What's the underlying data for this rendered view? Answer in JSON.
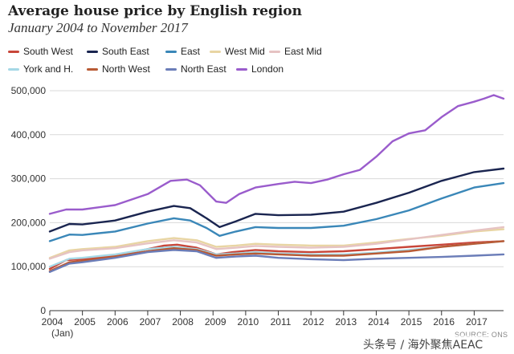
{
  "chart_data": {
    "type": "line",
    "title": "Average house price by English region",
    "subtitle": "January 2004 to November 2017",
    "source": "SOURCE: ONS",
    "x_tick_labels": [
      "2004",
      "2005",
      "2006",
      "2007",
      "2008",
      "2009",
      "2010",
      "2011",
      "2012",
      "2013",
      "2014",
      "2015",
      "2016",
      "2017"
    ],
    "x_first_tick_note": "(Jan)",
    "xlim": [
      2004.0,
      2017.9
    ],
    "y_tick_labels": [
      "0",
      "100,000",
      "200,000",
      "300,000",
      "400,000",
      "500,000"
    ],
    "ylim": [
      0,
      500000
    ],
    "grid": "horizontal",
    "legend_position": "top-left",
    "series": [
      {
        "name": "South West",
        "color": "#c8463a",
        "points": [
          [
            2004.0,
            95000
          ],
          [
            2004.5,
            115000
          ],
          [
            2005.0,
            117000
          ],
          [
            2006.0,
            125000
          ],
          [
            2007.0,
            140000
          ],
          [
            2007.5,
            148000
          ],
          [
            2007.9,
            150000
          ],
          [
            2008.5,
            143000
          ],
          [
            2009.1,
            128000
          ],
          [
            2009.6,
            133000
          ],
          [
            2010.3,
            138000
          ],
          [
            2011.0,
            135000
          ],
          [
            2012.0,
            133000
          ],
          [
            2013.0,
            135000
          ],
          [
            2014.0,
            140000
          ],
          [
            2015.0,
            145000
          ],
          [
            2016.0,
            150000
          ],
          [
            2017.0,
            155000
          ],
          [
            2017.9,
            158000
          ]
        ]
      },
      {
        "name": "South East",
        "color": "#1a2550",
        "points": [
          [
            2004.0,
            180000
          ],
          [
            2004.6,
            197000
          ],
          [
            2005.0,
            196000
          ],
          [
            2006.0,
            205000
          ],
          [
            2007.0,
            225000
          ],
          [
            2007.8,
            238000
          ],
          [
            2008.3,
            233000
          ],
          [
            2008.8,
            210000
          ],
          [
            2009.2,
            190000
          ],
          [
            2009.7,
            203000
          ],
          [
            2010.3,
            220000
          ],
          [
            2011.0,
            217000
          ],
          [
            2012.0,
            218000
          ],
          [
            2013.0,
            225000
          ],
          [
            2014.0,
            245000
          ],
          [
            2015.0,
            268000
          ],
          [
            2016.0,
            295000
          ],
          [
            2016.5,
            305000
          ],
          [
            2017.0,
            315000
          ],
          [
            2017.9,
            323000
          ]
        ]
      },
      {
        "name": "East",
        "color": "#3a87b8",
        "points": [
          [
            2004.0,
            158000
          ],
          [
            2004.6,
            173000
          ],
          [
            2005.0,
            172000
          ],
          [
            2006.0,
            180000
          ],
          [
            2007.0,
            198000
          ],
          [
            2007.8,
            210000
          ],
          [
            2008.3,
            205000
          ],
          [
            2008.8,
            188000
          ],
          [
            2009.2,
            170000
          ],
          [
            2009.7,
            180000
          ],
          [
            2010.3,
            190000
          ],
          [
            2011.0,
            188000
          ],
          [
            2012.0,
            188000
          ],
          [
            2013.0,
            193000
          ],
          [
            2014.0,
            208000
          ],
          [
            2015.0,
            228000
          ],
          [
            2016.0,
            255000
          ],
          [
            2017.0,
            280000
          ],
          [
            2017.9,
            290000
          ]
        ]
      },
      {
        "name": "West Mid",
        "color": "#e8d5a3",
        "points": [
          [
            2004.0,
            120000
          ],
          [
            2004.6,
            137000
          ],
          [
            2005.0,
            140000
          ],
          [
            2006.0,
            145000
          ],
          [
            2007.0,
            158000
          ],
          [
            2007.8,
            165000
          ],
          [
            2008.5,
            160000
          ],
          [
            2009.1,
            145000
          ],
          [
            2009.7,
            148000
          ],
          [
            2010.3,
            152000
          ],
          [
            2011.0,
            150000
          ],
          [
            2012.0,
            148000
          ],
          [
            2013.0,
            148000
          ],
          [
            2014.0,
            155000
          ],
          [
            2015.0,
            163000
          ],
          [
            2016.0,
            170000
          ],
          [
            2017.0,
            180000
          ],
          [
            2017.9,
            185000
          ]
        ]
      },
      {
        "name": "East Mid",
        "color": "#e6c3c3",
        "points": [
          [
            2004.0,
            118000
          ],
          [
            2004.6,
            133000
          ],
          [
            2005.0,
            137000
          ],
          [
            2006.0,
            142000
          ],
          [
            2007.0,
            153000
          ],
          [
            2007.8,
            160000
          ],
          [
            2008.5,
            155000
          ],
          [
            2009.1,
            140000
          ],
          [
            2009.7,
            143000
          ],
          [
            2010.3,
            147000
          ],
          [
            2011.0,
            145000
          ],
          [
            2012.0,
            143000
          ],
          [
            2013.0,
            145000
          ],
          [
            2014.0,
            152000
          ],
          [
            2015.0,
            162000
          ],
          [
            2016.0,
            172000
          ],
          [
            2017.0,
            182000
          ],
          [
            2017.9,
            190000
          ]
        ]
      },
      {
        "name": "York and H.",
        "color": "#a5d8e6",
        "points": [
          [
            2004.0,
            100000
          ],
          [
            2004.6,
            118000
          ],
          [
            2005.0,
            120000
          ],
          [
            2006.0,
            128000
          ],
          [
            2007.0,
            140000
          ],
          [
            2007.8,
            145000
          ],
          [
            2008.5,
            140000
          ],
          [
            2009.1,
            128000
          ],
          [
            2009.7,
            130000
          ],
          [
            2010.3,
            133000
          ],
          [
            2011.0,
            130000
          ],
          [
            2012.0,
            128000
          ],
          [
            2013.0,
            128000
          ],
          [
            2014.0,
            132000
          ],
          [
            2015.0,
            138000
          ],
          [
            2016.0,
            145000
          ],
          [
            2017.0,
            152000
          ],
          [
            2017.9,
            158000
          ]
        ]
      },
      {
        "name": "North West",
        "color": "#b85a34",
        "points": [
          [
            2004.0,
            90000
          ],
          [
            2004.6,
            110000
          ],
          [
            2005.0,
            113000
          ],
          [
            2006.0,
            123000
          ],
          [
            2007.0,
            135000
          ],
          [
            2007.8,
            142000
          ],
          [
            2008.5,
            138000
          ],
          [
            2009.1,
            125000
          ],
          [
            2009.7,
            128000
          ],
          [
            2010.3,
            130000
          ],
          [
            2011.0,
            128000
          ],
          [
            2012.0,
            125000
          ],
          [
            2013.0,
            125000
          ],
          [
            2014.0,
            130000
          ],
          [
            2015.0,
            135000
          ],
          [
            2016.0,
            145000
          ],
          [
            2017.0,
            152000
          ],
          [
            2017.9,
            158000
          ]
        ]
      },
      {
        "name": "North East",
        "color": "#6b7db8",
        "points": [
          [
            2004.0,
            88000
          ],
          [
            2004.6,
            107000
          ],
          [
            2005.0,
            110000
          ],
          [
            2006.0,
            120000
          ],
          [
            2007.0,
            133000
          ],
          [
            2007.8,
            138000
          ],
          [
            2008.5,
            135000
          ],
          [
            2009.1,
            120000
          ],
          [
            2009.7,
            123000
          ],
          [
            2010.3,
            125000
          ],
          [
            2011.0,
            120000
          ],
          [
            2012.0,
            117000
          ],
          [
            2013.0,
            115000
          ],
          [
            2014.0,
            118000
          ],
          [
            2015.0,
            120000
          ],
          [
            2016.0,
            122000
          ],
          [
            2017.0,
            125000
          ],
          [
            2017.9,
            128000
          ]
        ]
      },
      {
        "name": "London",
        "color": "#9a5ccc",
        "points": [
          [
            2004.0,
            220000
          ],
          [
            2004.5,
            230000
          ],
          [
            2005.0,
            230000
          ],
          [
            2006.0,
            240000
          ],
          [
            2007.0,
            265000
          ],
          [
            2007.7,
            295000
          ],
          [
            2008.2,
            298000
          ],
          [
            2008.6,
            285000
          ],
          [
            2009.1,
            248000
          ],
          [
            2009.4,
            245000
          ],
          [
            2009.8,
            265000
          ],
          [
            2010.3,
            280000
          ],
          [
            2011.0,
            288000
          ],
          [
            2011.5,
            293000
          ],
          [
            2012.0,
            290000
          ],
          [
            2012.5,
            298000
          ],
          [
            2013.0,
            310000
          ],
          [
            2013.5,
            320000
          ],
          [
            2014.0,
            350000
          ],
          [
            2014.5,
            385000
          ],
          [
            2015.0,
            403000
          ],
          [
            2015.5,
            410000
          ],
          [
            2016.0,
            440000
          ],
          [
            2016.5,
            465000
          ],
          [
            2017.0,
            475000
          ],
          [
            2017.3,
            482000
          ],
          [
            2017.6,
            490000
          ],
          [
            2017.9,
            482000
          ]
        ]
      }
    ]
  },
  "watermark": "头条号 / 海外聚焦AEAC"
}
